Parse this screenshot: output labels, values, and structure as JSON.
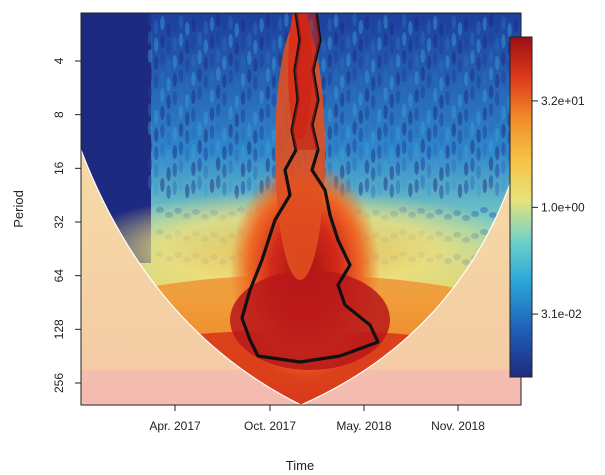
{
  "chart_data": {
    "type": "heatmap",
    "subtype": "wavelet power spectrum",
    "xlabel": "Time",
    "ylabel": "Period",
    "x_ticks": [
      "Apr. 2017",
      "Oct. 2017",
      "May. 2018",
      "Nov. 2018"
    ],
    "y_ticks": [
      "4",
      "8",
      "16",
      "32",
      "64",
      "128",
      "256"
    ],
    "y_scale": "log2",
    "y_range": [
      2,
      300
    ],
    "colorbar": {
      "ticks": [
        "3.2e+01",
        "1.0e+00",
        "3.1e-02"
      ],
      "tick_values": [
        32,
        1.0,
        0.031
      ],
      "range": [
        0.004,
        256
      ],
      "scale": "log",
      "colors": [
        "#1e2a80",
        "#1f5fb8",
        "#2aa6d8",
        "#6fd2c8",
        "#e6e37a",
        "#f7c244",
        "#f08d2a",
        "#dc3b1c",
        "#9e0f14"
      ]
    },
    "contour_color": "#111111",
    "cone_of_influence": true,
    "grid": false,
    "legend": "colorbar right"
  }
}
